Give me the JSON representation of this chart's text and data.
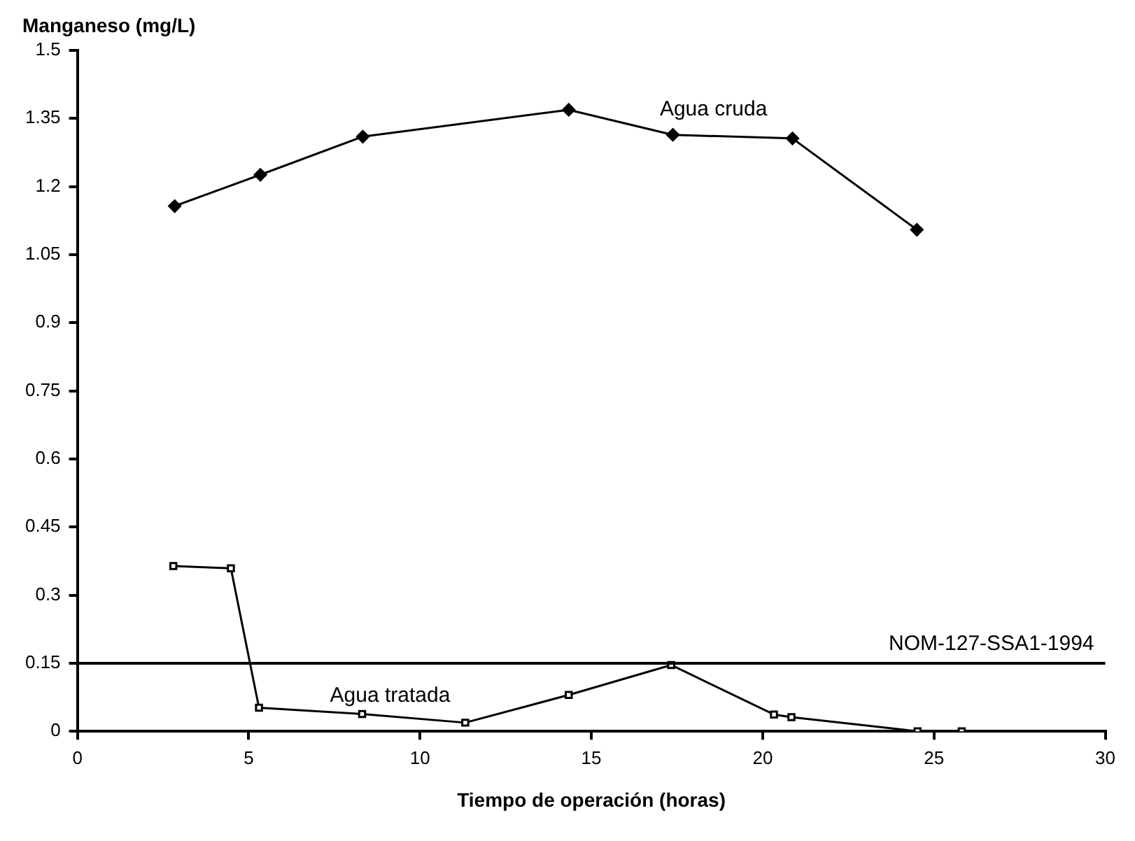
{
  "chart_data": {
    "type": "line",
    "xlabel": "Tiempo de operación (horas)",
    "ylabel": "Manganeso (mg/L)",
    "series": [
      {
        "name": "Agua cruda",
        "color": "#000000",
        "marker": "diamond",
        "x": [
          2.84,
          5.34,
          8.33,
          14.34,
          17.38,
          20.87,
          24.5
        ],
        "values": [
          1.157,
          1.226,
          1.31,
          1.369,
          1.314,
          1.306,
          1.105
        ]
      },
      {
        "name": "Agua tratada",
        "color": "#000000",
        "marker": "square",
        "x": [
          2.8,
          4.48,
          5.3,
          8.31,
          11.32,
          14.34,
          17.33,
          20.33,
          20.84,
          24.52,
          25.81
        ],
        "values": [
          0.364,
          0.359,
          0.052,
          0.038,
          0.019,
          0.08,
          0.146,
          0.037,
          0.031,
          0,
          0
        ]
      }
    ],
    "xlim": [
      0,
      30
    ],
    "xticks": [
      0,
      5,
      10,
      15,
      20,
      25,
      30
    ],
    "ylim": [
      0,
      1.5
    ],
    "yticks": [
      0,
      0.15,
      0.3,
      0.45,
      0.6,
      0.75,
      0.9,
      1.05,
      1.2,
      1.35,
      1.5
    ],
    "ref_lines": [
      {
        "axis": "y",
        "value": 0.15,
        "label": "NOM-127-SSA1-1994",
        "color": "#000000"
      }
    ],
    "grid": false,
    "legend": false
  }
}
